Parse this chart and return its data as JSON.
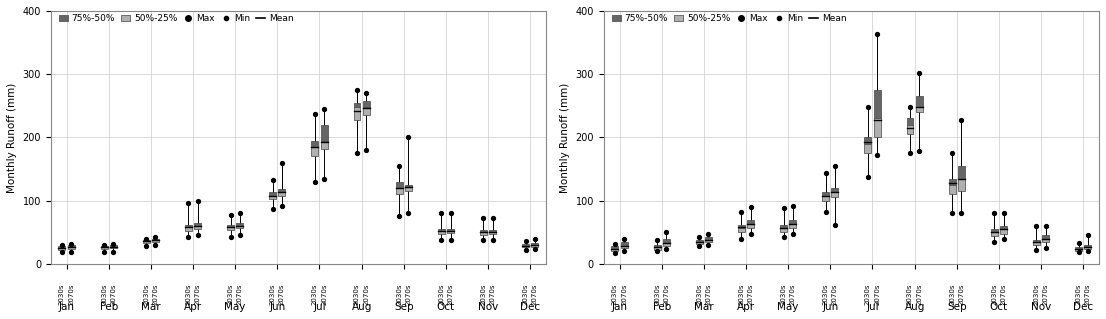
{
  "months": [
    "Jan",
    "Feb",
    "Mar",
    "Apr",
    "May",
    "Jun",
    "Jul",
    "Aug",
    "Sep",
    "Oct",
    "Nov",
    "Dec"
  ],
  "color_dark": "#666666",
  "color_light": "#b0b0b0",
  "ylabel": "Monthly Runoff (mm)",
  "ylim": [
    0,
    400
  ],
  "yticks": [
    0,
    100,
    200,
    300,
    400
  ],
  "rcp45": {
    "q75_2030": [
      28,
      28,
      38,
      62,
      62,
      113,
      195,
      255,
      130,
      55,
      53,
      32
    ],
    "q50_2030": [
      25,
      26,
      36,
      58,
      58,
      108,
      185,
      248,
      120,
      52,
      50,
      29
    ],
    "q25_2030": [
      22,
      24,
      33,
      52,
      53,
      103,
      170,
      228,
      110,
      48,
      46,
      26
    ],
    "mean_2030": [
      25,
      26,
      36,
      58,
      58,
      108,
      185,
      242,
      120,
      52,
      50,
      29
    ],
    "max_2030": [
      30,
      30,
      40,
      97,
      77,
      133,
      237,
      275,
      155,
      80,
      73,
      36
    ],
    "min_2030": [
      18,
      18,
      28,
      43,
      43,
      87,
      130,
      175,
      75,
      38,
      37,
      22
    ],
    "q75_2070": [
      30,
      30,
      40,
      65,
      65,
      118,
      220,
      258,
      125,
      55,
      53,
      33
    ],
    "q50_2070": [
      27,
      27,
      38,
      60,
      60,
      113,
      195,
      248,
      122,
      52,
      50,
      30
    ],
    "q25_2070": [
      24,
      25,
      35,
      55,
      56,
      108,
      182,
      235,
      115,
      49,
      47,
      27
    ],
    "mean_2070": [
      27,
      27,
      38,
      60,
      60,
      113,
      193,
      247,
      122,
      52,
      50,
      30
    ],
    "max_2070": [
      32,
      32,
      43,
      100,
      80,
      160,
      245,
      270,
      200,
      80,
      73,
      40
    ],
    "min_2070": [
      19,
      19,
      30,
      45,
      45,
      91,
      135,
      180,
      80,
      38,
      37,
      23
    ]
  },
  "rcp85": {
    "q75_2030": [
      28,
      30,
      38,
      62,
      62,
      113,
      200,
      230,
      135,
      55,
      38,
      27
    ],
    "q50_2030": [
      24,
      26,
      35,
      57,
      57,
      108,
      190,
      220,
      125,
      50,
      35,
      24
    ],
    "q25_2030": [
      20,
      22,
      31,
      50,
      50,
      100,
      175,
      205,
      110,
      44,
      30,
      20
    ],
    "mean_2030": [
      24,
      26,
      35,
      58,
      57,
      108,
      192,
      215,
      128,
      50,
      35,
      24
    ],
    "max_2030": [
      32,
      38,
      43,
      82,
      89,
      143,
      248,
      248,
      175,
      80,
      60,
      33
    ],
    "min_2030": [
      17,
      20,
      28,
      40,
      43,
      82,
      138,
      175,
      80,
      35,
      22,
      18
    ],
    "q75_2070": [
      35,
      40,
      42,
      70,
      70,
      120,
      275,
      265,
      155,
      60,
      45,
      30
    ],
    "q50_2070": [
      29,
      33,
      38,
      63,
      63,
      113,
      230,
      248,
      135,
      55,
      40,
      27
    ],
    "q25_2070": [
      25,
      28,
      34,
      56,
      56,
      105,
      200,
      240,
      115,
      48,
      35,
      24
    ],
    "mean_2070": [
      29,
      33,
      38,
      63,
      63,
      113,
      228,
      248,
      135,
      55,
      40,
      27
    ],
    "max_2070": [
      40,
      50,
      48,
      90,
      92,
      155,
      363,
      302,
      228,
      80,
      60,
      45
    ],
    "min_2070": [
      20,
      24,
      30,
      47,
      48,
      62,
      172,
      178,
      80,
      40,
      25,
      20
    ]
  }
}
